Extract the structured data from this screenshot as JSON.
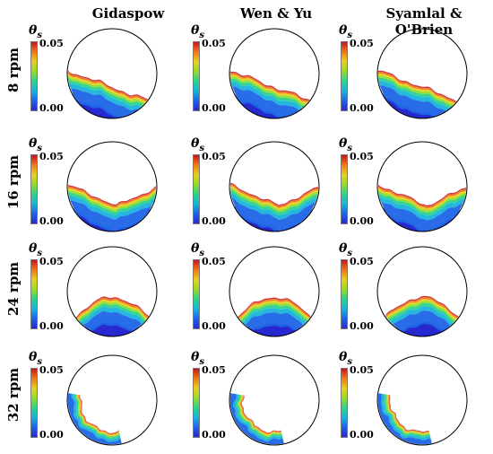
{
  "columns": [
    "Gidaspow",
    "Wen & Yu",
    "Syamlal & O'Brien"
  ],
  "rows": [
    "8 rpm",
    "16 rpm",
    "24 rpm",
    "32 rpm"
  ],
  "colorbar": {
    "symbol": "θ",
    "subscript": "s",
    "max_label": "0.05",
    "min_label": "0.00"
  },
  "colors": [
    "#c8141e",
    "#f07818",
    "#e8d020",
    "#96dc28",
    "#2cd28c",
    "#18b4dc",
    "#1c64e6",
    "#2828d0"
  ]
}
